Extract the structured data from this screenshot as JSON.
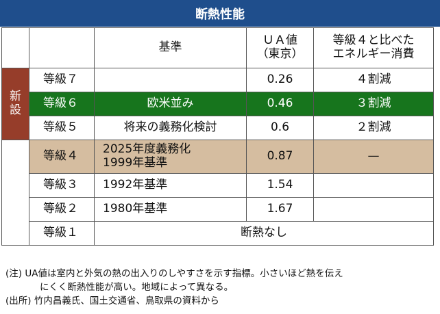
{
  "title": "断熱性能",
  "header": {
    "basis": "基準",
    "ua_line1": "ＵＡ値",
    "ua_line2": "（東京）",
    "compare_line1": "等級４と比べた",
    "compare_line2": "エネルギー消費"
  },
  "side_label_line1": "新",
  "side_label_line2": "設",
  "rows": [
    {
      "grade": "等級７",
      "basis": "",
      "ua": "0.26",
      "compare": "４割減"
    },
    {
      "grade": "等級６",
      "basis": "欧米並み",
      "ua": "0.46",
      "compare": "３割減"
    },
    {
      "grade": "等級５",
      "basis": "将来の義務化検討",
      "ua": "0.6",
      "compare": "２割減"
    },
    {
      "grade": "等級４",
      "basis_line1": "2025年度義務化",
      "basis_line2": "1999年基準",
      "ua": "0.87",
      "compare": "—"
    },
    {
      "grade": "等級３",
      "basis": "1992年基準",
      "ua": "1.54",
      "compare": ""
    },
    {
      "grade": "等級２",
      "basis": "1980年基準",
      "ua": "1.67",
      "compare": ""
    },
    {
      "grade": "等級１",
      "basis": "断熱なし"
    }
  ],
  "notes": {
    "note_line1": "(注) UA値は室内と外気の熱の出入りのしやすさを示す指標。小さいほど熱を伝え",
    "note_line2": "にくく断熱性能が高い。地域によって異なる。",
    "source": "(出所) 竹内昌義氏、国土交通省、鳥取県の資料から"
  },
  "colors": {
    "title_bg": "#1f4e8c",
    "side_bg": "#963d2a",
    "grade6_bg": "#17751d",
    "grade4_bg": "#d5bda0"
  }
}
